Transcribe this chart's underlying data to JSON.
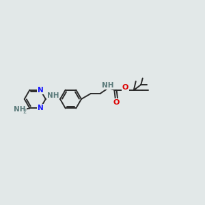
{
  "bg_color": "#e2e8e8",
  "bond_color": "#2a2a2a",
  "N_color": "#1414ff",
  "O_color": "#dd0000",
  "H_color": "#5a7a7a",
  "bond_width": 1.4,
  "font_size": 7.5,
  "ring_r": 0.62,
  "xlim": [
    0,
    12
  ],
  "ylim": [
    0,
    10
  ]
}
